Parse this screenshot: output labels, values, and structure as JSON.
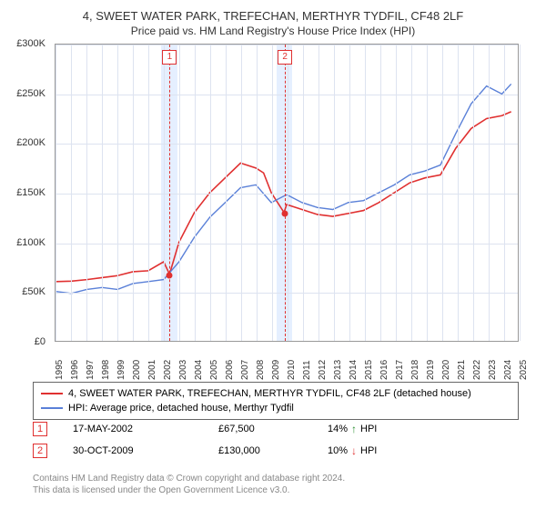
{
  "title": "4, SWEET WATER PARK, TREFECHAN, MERTHYR TYDFIL, CF48 2LF",
  "subtitle": "Price paid vs. HM Land Registry's House Price Index (HPI)",
  "chart": {
    "type": "line",
    "xlim": [
      1995,
      2025
    ],
    "ylim": [
      0,
      300000
    ],
    "ytick_step": 50000,
    "y_tick_labels": [
      "£0",
      "£50K",
      "£100K",
      "£150K",
      "£200K",
      "£250K",
      "£300K"
    ],
    "x_ticks": [
      1995,
      1996,
      1997,
      1998,
      1999,
      2000,
      2001,
      2002,
      2003,
      2004,
      2005,
      2006,
      2007,
      2008,
      2009,
      2010,
      2011,
      2012,
      2013,
      2014,
      2015,
      2016,
      2017,
      2018,
      2019,
      2020,
      2021,
      2022,
      2023,
      2024,
      2025
    ],
    "background_color": "#ffffff",
    "grid_color": "#dde3f0",
    "sale_band_color": "#e5efff",
    "sale_line_color": "#e03030",
    "series": [
      {
        "name": "property",
        "label": "4, SWEET WATER PARK, TREFECHAN, MERTHYR TYDFIL, CF48 2LF (detached house)",
        "color": "#e03030",
        "width": 1.6,
        "data": [
          [
            1995,
            60000
          ],
          [
            1996,
            60500
          ],
          [
            1997,
            62000
          ],
          [
            1998,
            64000
          ],
          [
            1999,
            66000
          ],
          [
            2000,
            70000
          ],
          [
            2001,
            71000
          ],
          [
            2002,
            80000
          ],
          [
            2002.38,
            67500
          ],
          [
            2003,
            100000
          ],
          [
            2004,
            130000
          ],
          [
            2005,
            150000
          ],
          [
            2006,
            165000
          ],
          [
            2007,
            180000
          ],
          [
            2008,
            175000
          ],
          [
            2008.5,
            170000
          ],
          [
            2009,
            150000
          ],
          [
            2009.83,
            130000
          ],
          [
            2010,
            138000
          ],
          [
            2011,
            133000
          ],
          [
            2012,
            128000
          ],
          [
            2013,
            126000
          ],
          [
            2014,
            129000
          ],
          [
            2015,
            132000
          ],
          [
            2016,
            140000
          ],
          [
            2017,
            150000
          ],
          [
            2018,
            160000
          ],
          [
            2019,
            165000
          ],
          [
            2020,
            168000
          ],
          [
            2021,
            195000
          ],
          [
            2022,
            215000
          ],
          [
            2023,
            225000
          ],
          [
            2024,
            228000
          ],
          [
            2024.6,
            232000
          ]
        ]
      },
      {
        "name": "hpi",
        "label": "HPI: Average price, detached house, Merthyr Tydfil",
        "color": "#5a80d8",
        "width": 1.4,
        "data": [
          [
            1995,
            50000
          ],
          [
            1996,
            48000
          ],
          [
            1997,
            52000
          ],
          [
            1998,
            54000
          ],
          [
            1999,
            52000
          ],
          [
            2000,
            58000
          ],
          [
            2001,
            60000
          ],
          [
            2002,
            62000
          ],
          [
            2003,
            80000
          ],
          [
            2004,
            105000
          ],
          [
            2005,
            125000
          ],
          [
            2006,
            140000
          ],
          [
            2007,
            155000
          ],
          [
            2008,
            158000
          ],
          [
            2009,
            140000
          ],
          [
            2010,
            148000
          ],
          [
            2011,
            140000
          ],
          [
            2012,
            135000
          ],
          [
            2013,
            133000
          ],
          [
            2014,
            140000
          ],
          [
            2015,
            142000
          ],
          [
            2016,
            150000
          ],
          [
            2017,
            158000
          ],
          [
            2018,
            168000
          ],
          [
            2019,
            172000
          ],
          [
            2020,
            178000
          ],
          [
            2021,
            210000
          ],
          [
            2022,
            240000
          ],
          [
            2023,
            258000
          ],
          [
            2024,
            250000
          ],
          [
            2024.6,
            260000
          ]
        ]
      }
    ],
    "sale_markers": [
      {
        "n": 1,
        "x": 2002.38,
        "y": 67500,
        "band_start": 2001.8,
        "band_end": 2002.9
      },
      {
        "n": 2,
        "x": 2009.83,
        "y": 130000,
        "band_start": 2009.3,
        "band_end": 2010.3
      }
    ]
  },
  "legend": {
    "items": [
      {
        "color": "#e03030",
        "label": "4, SWEET WATER PARK, TREFECHAN, MERTHYR TYDFIL, CF48 2LF (detached house)"
      },
      {
        "color": "#5a80d8",
        "label": "HPI: Average price, detached house, Merthyr Tydfil"
      }
    ]
  },
  "sales": [
    {
      "n": "1",
      "date": "17-MAY-2002",
      "price": "£67,500",
      "pct": "14%",
      "arrow": "↑",
      "arrow_color": "#2a9030",
      "suffix": "HPI"
    },
    {
      "n": "2",
      "date": "30-OCT-2009",
      "price": "£130,000",
      "pct": "10%",
      "arrow": "↓",
      "arrow_color": "#e03030",
      "suffix": "HPI"
    }
  ],
  "footer": {
    "line1": "Contains HM Land Registry data © Crown copyright and database right 2024.",
    "line2": "This data is licensed under the Open Government Licence v3.0."
  }
}
